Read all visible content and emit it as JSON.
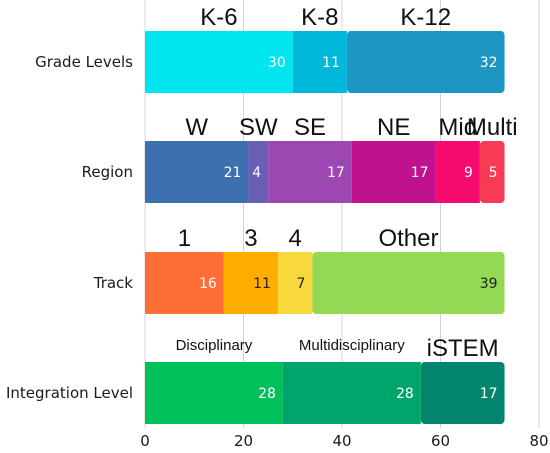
{
  "chart_data": {
    "type": "bar",
    "orientation": "horizontal",
    "stacked": true,
    "xlim": [
      0,
      80
    ],
    "xticks": [
      0,
      20,
      40,
      60,
      80
    ],
    "grid": true,
    "rows": [
      {
        "label": "Grade Levels",
        "segments": [
          {
            "name": "K-6",
            "value": 30,
            "color": "#00E5EE"
          },
          {
            "name": "K-8",
            "value": 11,
            "color": "#00B8D9"
          },
          {
            "name": "K-12",
            "value": 32,
            "color": "#1E96C3"
          }
        ]
      },
      {
        "label": "Region",
        "segments": [
          {
            "name": "W",
            "value": 21,
            "color": "#3E6FB0"
          },
          {
            "name": "SW",
            "value": 4,
            "color": "#6A5FB7"
          },
          {
            "name": "SE",
            "value": 17,
            "color": "#9D48B2"
          },
          {
            "name": "NE",
            "value": 17,
            "color": "#C0128E"
          },
          {
            "name": "Mid",
            "value": 9,
            "color": "#F50A6E"
          },
          {
            "name": "Multi",
            "value": 5,
            "color": "#F73B55"
          }
        ]
      },
      {
        "label": "Track",
        "segments": [
          {
            "name": "1",
            "value": 16,
            "color": "#FF6E37"
          },
          {
            "name": "3",
            "value": 11,
            "color": "#FFAE00"
          },
          {
            "name": "4",
            "value": 7,
            "color": "#F7D93B"
          },
          {
            "name": "Other",
            "value": 39,
            "color": "#93D956"
          }
        ]
      },
      {
        "label": "Integration Level",
        "segments": [
          {
            "name": "Disciplinary",
            "value": 28,
            "color": "#00C05A"
          },
          {
            "name": "Multidisciplinary",
            "value": 28,
            "color": "#00A56B"
          },
          {
            "name": "iSTEM",
            "value": 17,
            "color": "#04856E"
          }
        ]
      }
    ]
  }
}
